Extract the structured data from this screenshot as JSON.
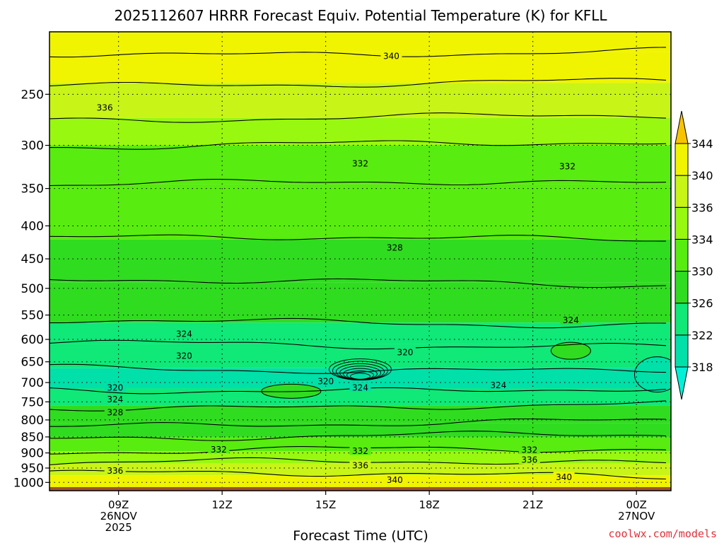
{
  "chart_data": {
    "type": "heatmap",
    "title": "2025112607 HRRR Forecast Equiv. Potential Temperature (K) for KFLL",
    "xlabel": "Forecast Time (UTC)",
    "ylabel": "",
    "y_scale": "log-pressure",
    "ylim_hPa": [
      1030,
      200
    ],
    "xlim_hours": [
      7,
      25
    ],
    "y_ticks": [
      250,
      300,
      350,
      400,
      450,
      500,
      550,
      600,
      650,
      700,
      750,
      800,
      850,
      900,
      950,
      1000
    ],
    "x_ticks": [
      {
        "hour": 9,
        "lines": [
          "09Z",
          "26NOV",
          "2025"
        ]
      },
      {
        "hour": 12,
        "lines": [
          "12Z"
        ]
      },
      {
        "hour": 15,
        "lines": [
          "15Z"
        ]
      },
      {
        "hour": 18,
        "lines": [
          "18Z"
        ]
      },
      {
        "hour": 21,
        "lines": [
          "21Z"
        ]
      },
      {
        "hour": 24,
        "lines": [
          "00Z",
          "27NOV"
        ]
      }
    ],
    "grid": true,
    "colorbar": {
      "levels": [
        318,
        322,
        326,
        330,
        334,
        336,
        340,
        344
      ],
      "tick_labels": [
        "318",
        "322",
        "326",
        "330",
        "334",
        "336",
        "340",
        "344"
      ],
      "colors": [
        "#00e0a8",
        "#10e878",
        "#30dc20",
        "#58ec10",
        "#98f810",
        "#c8f418",
        "#f0f400",
        "#ffe800"
      ],
      "extend": "both",
      "under_color": "#00f0d8",
      "over_color": "#f8c400"
    },
    "layers": [
      {
        "p_top": 200,
        "p_bottom": 215,
        "theta": 342
      },
      {
        "p_top": 215,
        "p_bottom": 240,
        "theta": 340
      },
      {
        "p_top": 240,
        "p_bottom": 272,
        "theta": 336
      },
      {
        "p_top": 272,
        "p_bottom": 300,
        "theta": 334
      },
      {
        "p_top": 300,
        "p_bottom": 345,
        "theta": 332
      },
      {
        "p_top": 345,
        "p_bottom": 420,
        "theta": 330
      },
      {
        "p_top": 420,
        "p_bottom": 490,
        "theta": 328
      },
      {
        "p_top": 490,
        "p_bottom": 565,
        "theta": 326
      },
      {
        "p_top": 565,
        "p_bottom": 610,
        "theta": 324
      },
      {
        "p_top": 610,
        "p_bottom": 665,
        "theta": 322
      },
      {
        "p_top": 665,
        "p_bottom": 715,
        "theta": 320
      },
      {
        "p_top": 715,
        "p_bottom": 760,
        "theta": 322
      },
      {
        "p_top": 760,
        "p_bottom": 810,
        "theta": 326
      },
      {
        "p_top": 810,
        "p_bottom": 850,
        "theta": 328
      },
      {
        "p_top": 850,
        "p_bottom": 895,
        "theta": 332
      },
      {
        "p_top": 895,
        "p_bottom": 935,
        "theta": 334
      },
      {
        "p_top": 935,
        "p_bottom": 975,
        "theta": 336
      },
      {
        "p_top": 975,
        "p_bottom": 1030,
        "theta": 340
      }
    ],
    "contour_labels": [
      {
        "text": "340",
        "hour": 16.9,
        "p": 218
      },
      {
        "text": "336",
        "hour": 8.6,
        "p": 262
      },
      {
        "text": "332",
        "hour": 16.0,
        "p": 320
      },
      {
        "text": "332",
        "hour": 22.0,
        "p": 323
      },
      {
        "text": "328",
        "hour": 17.0,
        "p": 432
      },
      {
        "text": "324",
        "hour": 22.1,
        "p": 560
      },
      {
        "text": "324",
        "hour": 10.9,
        "p": 588
      },
      {
        "text": "320",
        "hour": 10.9,
        "p": 636
      },
      {
        "text": "320",
        "hour": 17.3,
        "p": 628
      },
      {
        "text": "320",
        "hour": 15.0,
        "p": 696
      },
      {
        "text": "320",
        "hour": 8.9,
        "p": 712
      },
      {
        "text": "324",
        "hour": 16.0,
        "p": 712
      },
      {
        "text": "324",
        "hour": 20.0,
        "p": 706
      },
      {
        "text": "324",
        "hour": 8.9,
        "p": 743
      },
      {
        "text": "328",
        "hour": 8.9,
        "p": 778
      },
      {
        "text": "332",
        "hour": 11.9,
        "p": 888
      },
      {
        "text": "332",
        "hour": 16.0,
        "p": 893
      },
      {
        "text": "332",
        "hour": 20.9,
        "p": 890
      },
      {
        "text": "336",
        "hour": 16.0,
        "p": 940
      },
      {
        "text": "336",
        "hour": 20.9,
        "p": 922
      },
      {
        "text": "336",
        "hour": 8.9,
        "p": 958
      },
      {
        "text": "340",
        "hour": 17.0,
        "p": 990
      },
      {
        "text": "340",
        "hour": 21.9,
        "p": 980
      }
    ],
    "ground": {
      "p_top": 1017,
      "color": "#a0522d"
    }
  },
  "credit": "coolwx.com/models"
}
